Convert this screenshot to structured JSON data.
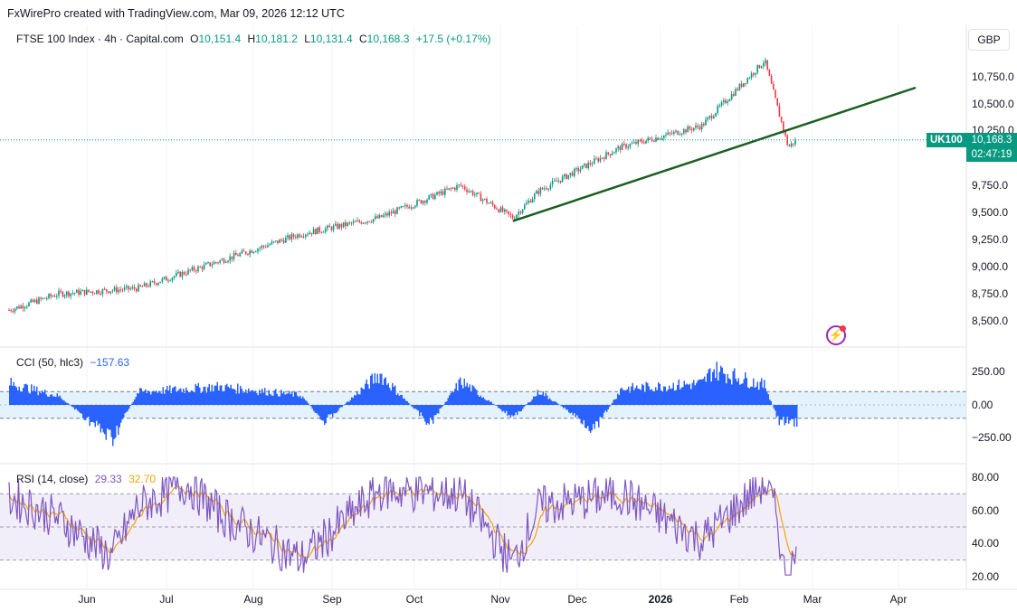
{
  "credit": "FxWirePro created with TradingView.com, Mar 09, 2026 12:12 UTC",
  "currency": "GBP",
  "main": {
    "title": "FTSE 100 Index · 4h · Capital.com",
    "ohlc": {
      "o_label": "O",
      "o": "10,151.4",
      "h_label": "H",
      "h": "10,181.2",
      "l_label": "L",
      "l": "10,131.4",
      "c_label": "C",
      "c": "10,168.3",
      "chg": "+17.5 (+0.17%)"
    },
    "symbol_badge": "UK100",
    "last_price": "10,168.3",
    "countdown": "02:47:19",
    "y_ticks": [
      "10,750.0",
      "10,500.0",
      "10,250.0",
      "9,750.0",
      "9,500.0",
      "9,250.0",
      "9,000.0",
      "8,750.0",
      "8,500.0"
    ]
  },
  "cci": {
    "title": "CCI (50, hlc3)",
    "value": "−157.63",
    "y_ticks": [
      "250.00",
      "0.00",
      "−250.00"
    ]
  },
  "rsi": {
    "title": "RSI (14, close)",
    "value": "29.33",
    "ma_value": "32.70",
    "y_ticks": [
      "80.00",
      "60.00",
      "40.00",
      "20.00"
    ]
  },
  "x_axis": [
    "Jun",
    "Jul",
    "Aug",
    "Sep",
    "Oct",
    "Nov",
    "Dec",
    "2026",
    "Feb",
    "Mar",
    "Apr"
  ],
  "colors": {
    "up": "#089981",
    "down": "#f23645",
    "trendline": "#1b5e20",
    "cci": "#2962ff",
    "rsi": "#7e57c2",
    "rsi_ma": "#f0a30a",
    "band": "#e3f2fd"
  },
  "icon": "bolt-icon",
  "chart_data": [
    {
      "type": "candlestick",
      "title": "FTSE 100 Index · 4h · Capital.com",
      "ylim": [
        8400,
        10950
      ],
      "x": [
        "May 13",
        "Jun 1",
        "Jul 1",
        "Aug 1",
        "Sep 1",
        "Oct 1",
        "Nov 1",
        "Nov 21",
        "Dec 1",
        "Jan 1",
        "Feb 1",
        "Feb 25",
        "Mar 2",
        "Mar 6",
        "Mar 9"
      ],
      "close": [
        8600,
        8750,
        8800,
        9050,
        9300,
        9450,
        9750,
        9450,
        9700,
        10100,
        10300,
        10900,
        10450,
        10100,
        10168.3
      ],
      "trendline": {
        "from": [
          "Nov 21",
          9420
        ],
        "to": [
          "Apr 1",
          10650
        ]
      },
      "last": 10168.3
    },
    {
      "type": "line",
      "title": "CCI (50, hlc3)",
      "ylim": [
        -360,
        360
      ],
      "bands": [
        -100,
        100
      ],
      "x": [
        "May 13",
        "Jun 1",
        "Jun 21",
        "Jul 1",
        "Aug 1",
        "Sep 1",
        "Sep 10",
        "Oct 1",
        "Oct 20",
        "Nov 1",
        "Nov 21",
        "Dec 1",
        "Dec 22",
        "Jan 1",
        "Feb 1",
        "Feb 5",
        "Feb 25",
        "Mar 2",
        "Mar 9"
      ],
      "values": [
        200,
        80,
        -320,
        120,
        170,
        90,
        -160,
        290,
        -180,
        220,
        -120,
        130,
        -230,
        150,
        200,
        330,
        180,
        -150,
        -157.63
      ]
    },
    {
      "type": "line",
      "title": "RSI (14, close)",
      "ylim": [
        15,
        85
      ],
      "bands": [
        30,
        50,
        70
      ],
      "x": [
        "May 13",
        "Jun 1",
        "Jun 21",
        "Jul 1",
        "Jul 20",
        "Aug 1",
        "Sep 1",
        "Oct 1",
        "Nov 1",
        "Nov 21",
        "Dec 1",
        "Jan 1",
        "Feb 1",
        "Feb 25",
        "Mar 2",
        "Mar 4",
        "Mar 9"
      ],
      "series": [
        {
          "name": "RSI",
          "values": [
            68,
            55,
            32,
            62,
            76,
            58,
            30,
            72,
            70,
            28,
            62,
            70,
            42,
            77,
            55,
            23,
            29.33
          ]
        },
        {
          "name": "MA",
          "values": [
            60,
            55,
            40,
            58,
            68,
            56,
            40,
            62,
            65,
            35,
            58,
            65,
            48,
            70,
            60,
            35,
            32.7
          ]
        }
      ]
    }
  ]
}
